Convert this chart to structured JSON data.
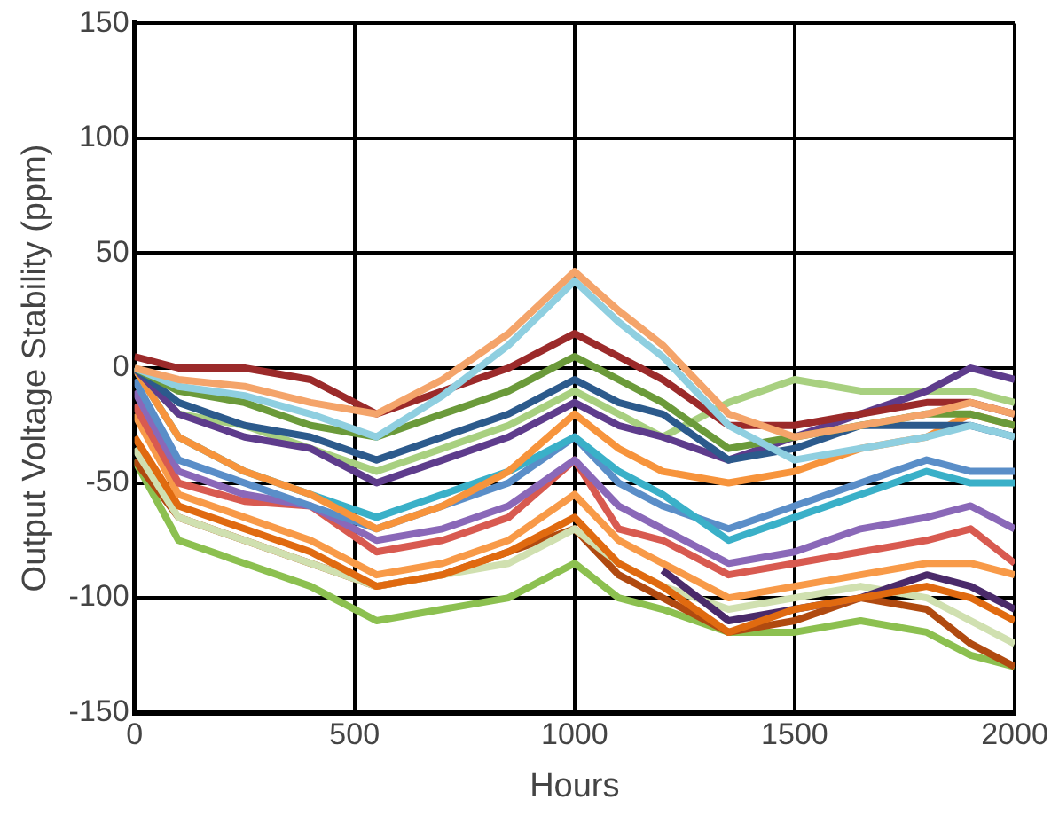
{
  "chart_data": {
    "type": "line",
    "xlabel": "Hours",
    "ylabel": "Output Voltage Stability (ppm)",
    "x": [
      0,
      100,
      250,
      400,
      550,
      700,
      850,
      1000,
      1100,
      1200,
      1350,
      1500,
      1650,
      1800,
      1900,
      2000
    ],
    "xlim": [
      0,
      2000
    ],
    "xticks": [
      0,
      500,
      1000,
      1500,
      2000
    ],
    "ylim": [
      -150,
      150
    ],
    "yticks": [
      -150,
      -100,
      -50,
      0,
      50,
      100,
      150
    ],
    "grid": true,
    "legend": false,
    "marker": "none",
    "line_style": "solid",
    "series": [
      {
        "color": "#f4a46a",
        "values": [
          0,
          -5,
          -8,
          -15,
          -20,
          -5,
          15,
          42,
          25,
          10,
          -20,
          -30,
          -25,
          -20,
          -15,
          -20
        ]
      },
      {
        "color": "#8fcfe0",
        "values": [
          0,
          -8,
          -12,
          -20,
          -30,
          -12,
          10,
          38,
          20,
          5,
          -25,
          -40,
          -35,
          -30,
          -25,
          -30
        ]
      },
      {
        "color": "#9b2a2a",
        "values": [
          5,
          0,
          0,
          -5,
          -20,
          -10,
          0,
          15,
          5,
          -5,
          -25,
          -25,
          -20,
          -15,
          -15,
          -20
        ]
      },
      {
        "color": "#6b9a3a",
        "values": [
          0,
          -10,
          -15,
          -25,
          -30,
          -20,
          -10,
          5,
          -5,
          -15,
          -35,
          -30,
          -25,
          -20,
          -20,
          -25
        ]
      },
      {
        "color": "#2c5a8c",
        "values": [
          0,
          -15,
          -25,
          -30,
          -40,
          -30,
          -20,
          -5,
          -15,
          -20,
          -40,
          -35,
          -25,
          -25,
          -25,
          -30
        ]
      },
      {
        "color": "#5e3c8c",
        "values": [
          0,
          -20,
          -30,
          -35,
          -50,
          -40,
          -30,
          -15,
          -25,
          -30,
          -40,
          -30,
          -20,
          -10,
          0,
          -5
        ]
      },
      {
        "color": "#a8d080",
        "values": [
          0,
          -20,
          -25,
          -35,
          -45,
          -35,
          -25,
          -10,
          -20,
          -30,
          -15,
          -5,
          -10,
          -10,
          -10,
          -15
        ]
      },
      {
        "color": "#f7943c",
        "values": [
          0,
          -30,
          -45,
          -55,
          -70,
          -60,
          -45,
          -20,
          -35,
          -45,
          -50,
          -45,
          -35,
          -30,
          -20,
          -25
        ]
      },
      {
        "color": "#3ab0c8",
        "values": [
          0,
          -30,
          -45,
          -55,
          -65,
          -55,
          -45,
          -30,
          -45,
          -55,
          -75,
          -65,
          -55,
          -45,
          -50,
          -50
        ]
      },
      {
        "color": "#5a8ec8",
        "values": [
          -5,
          -40,
          -50,
          -60,
          -70,
          -60,
          -50,
          -30,
          -50,
          -60,
          -70,
          -60,
          -50,
          -40,
          -45,
          -45
        ]
      },
      {
        "color": "#8a68b8",
        "values": [
          -10,
          -45,
          -55,
          -60,
          -75,
          -70,
          -60,
          -40,
          -60,
          -70,
          -85,
          -80,
          -70,
          -65,
          -60,
          -70
        ]
      },
      {
        "color": "#d85a50",
        "values": [
          -16,
          -50,
          -58,
          -60,
          -80,
          -75,
          -65,
          -40,
          -70,
          -75,
          -90,
          -85,
          -80,
          -75,
          -70,
          -85
        ]
      },
      {
        "color": "#f89a48",
        "values": [
          -20,
          -55,
          -65,
          -75,
          -90,
          -85,
          -75,
          -55,
          -75,
          -85,
          -100,
          -95,
          -90,
          -85,
          -85,
          -90
        ]
      },
      {
        "color": "#e06a10",
        "values": [
          -30,
          -60,
          -70,
          -80,
          -95,
          -90,
          -80,
          -65,
          -85,
          -95,
          -115,
          -105,
          -100,
          -95,
          -100,
          -110
        ]
      },
      {
        "color": "#4a2a6a",
        "values": [
          null,
          null,
          null,
          null,
          null,
          null,
          null,
          null,
          null,
          -88,
          -110,
          -105,
          -100,
          -90,
          -95,
          -105
        ]
      },
      {
        "color": "#d0e0b0",
        "values": [
          -35,
          -65,
          -75,
          -85,
          -95,
          -90,
          -85,
          -70,
          -85,
          -95,
          -105,
          -100,
          -95,
          -100,
          -110,
          -120
        ]
      },
      {
        "color": "#b04a10",
        "values": [
          -40,
          -65,
          -75,
          -85,
          -95,
          -90,
          -80,
          -70,
          -90,
          -100,
          -115,
          -110,
          -100,
          -105,
          -120,
          -130
        ]
      },
      {
        "color": "#8cc050",
        "values": [
          -40,
          -75,
          -85,
          -95,
          -110,
          -105,
          -100,
          -85,
          -100,
          -105,
          -115,
          -115,
          -110,
          -115,
          -125,
          -130
        ]
      }
    ]
  }
}
